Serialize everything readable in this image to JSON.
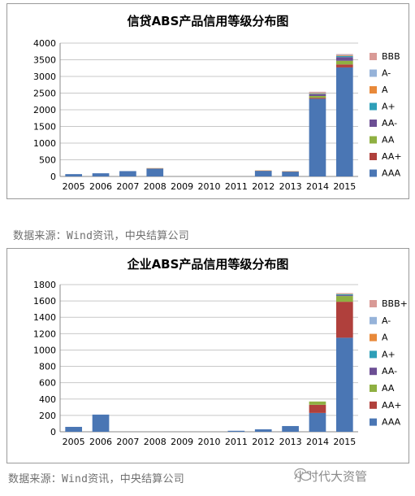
{
  "chart_data": [
    {
      "type": "bar",
      "stacked": true,
      "title": "信贷ABS产品信用等级分布图",
      "categories": [
        "2005",
        "2006",
        "2007",
        "2008",
        "2009",
        "2010",
        "2011",
        "2012",
        "2013",
        "2014",
        "2015"
      ],
      "ylim": [
        0,
        4000
      ],
      "yticks": [
        "0",
        "500",
        "1000",
        "1500",
        "2000",
        "2500",
        "3000",
        "3500",
        "4000"
      ],
      "legend_position": "right",
      "grid": true,
      "series": [
        {
          "name": "AAA",
          "color": "#4a76b4",
          "values": [
            70,
            95,
            160,
            240,
            0,
            0,
            0,
            170,
            150,
            2330,
            3270
          ]
        },
        {
          "name": "AA+",
          "color": "#b0403c",
          "values": [
            0,
            0,
            0,
            0,
            0,
            0,
            0,
            0,
            0,
            30,
            90
          ]
        },
        {
          "name": "AA",
          "color": "#8fb042",
          "values": [
            0,
            0,
            0,
            0,
            0,
            0,
            0,
            0,
            0,
            55,
            110
          ]
        },
        {
          "name": "AA-",
          "color": "#6c4f94",
          "values": [
            0,
            0,
            0,
            0,
            0,
            0,
            0,
            0,
            0,
            50,
            110
          ]
        },
        {
          "name": "A+",
          "color": "#2e9fb8",
          "values": [
            0,
            0,
            0,
            0,
            0,
            0,
            0,
            0,
            0,
            15,
            30
          ]
        },
        {
          "name": "A",
          "color": "#e8893a",
          "values": [
            0,
            0,
            0,
            10,
            0,
            0,
            0,
            10,
            5,
            20,
            20
          ]
        },
        {
          "name": "A-",
          "color": "#96b3d9",
          "values": [
            0,
            0,
            0,
            0,
            0,
            0,
            0,
            0,
            0,
            20,
            20
          ]
        },
        {
          "name": "BBB",
          "color": "#d99a96",
          "values": [
            0,
            0,
            0,
            0,
            0,
            0,
            0,
            0,
            0,
            20,
            20
          ]
        }
      ]
    },
    {
      "type": "bar",
      "stacked": true,
      "title": "企业ABS产品信用等级分布图",
      "categories": [
        "2005",
        "2006",
        "2007",
        "2008",
        "2009",
        "2010",
        "2011",
        "2012",
        "2013",
        "2014",
        "2015"
      ],
      "ylim": [
        0,
        1800
      ],
      "yticks": [
        "0",
        "200",
        "400",
        "600",
        "800",
        "1000",
        "1200",
        "1400",
        "1600",
        "1800"
      ],
      "legend_position": "right",
      "grid": true,
      "series": [
        {
          "name": "AAA",
          "color": "#4a76b4",
          "values": [
            60,
            210,
            0,
            0,
            0,
            0,
            12,
            30,
            70,
            230,
            1150
          ]
        },
        {
          "name": "AA+",
          "color": "#b0403c",
          "values": [
            0,
            0,
            0,
            0,
            0,
            0,
            0,
            0,
            0,
            100,
            440
          ]
        },
        {
          "name": "AA",
          "color": "#8fb042",
          "values": [
            0,
            0,
            0,
            0,
            0,
            0,
            0,
            0,
            0,
            40,
            70
          ]
        },
        {
          "name": "AA-",
          "color": "#6c4f94",
          "values": [
            0,
            0,
            0,
            0,
            0,
            0,
            0,
            0,
            0,
            0,
            10
          ]
        },
        {
          "name": "A+",
          "color": "#2e9fb8",
          "values": [
            0,
            0,
            0,
            0,
            0,
            0,
            0,
            0,
            0,
            0,
            10
          ]
        },
        {
          "name": "A",
          "color": "#e8893a",
          "values": [
            0,
            0,
            0,
            0,
            0,
            0,
            0,
            0,
            0,
            0,
            5
          ]
        },
        {
          "name": "A-",
          "color": "#96b3d9",
          "values": [
            0,
            0,
            0,
            0,
            0,
            0,
            0,
            0,
            0,
            0,
            5
          ]
        },
        {
          "name": "BBB+",
          "color": "#d99a96",
          "values": [
            0,
            0,
            0,
            0,
            0,
            0,
            0,
            0,
            0,
            0,
            5
          ]
        }
      ]
    }
  ],
  "sources": {
    "source1": "数据来源：Wind资讯，中央结算公司",
    "source2": "数据来源：Wind资讯，中央结算公司"
  },
  "watermark": {
    "text": "小时代大资管",
    "icon": "wechat-icon"
  }
}
